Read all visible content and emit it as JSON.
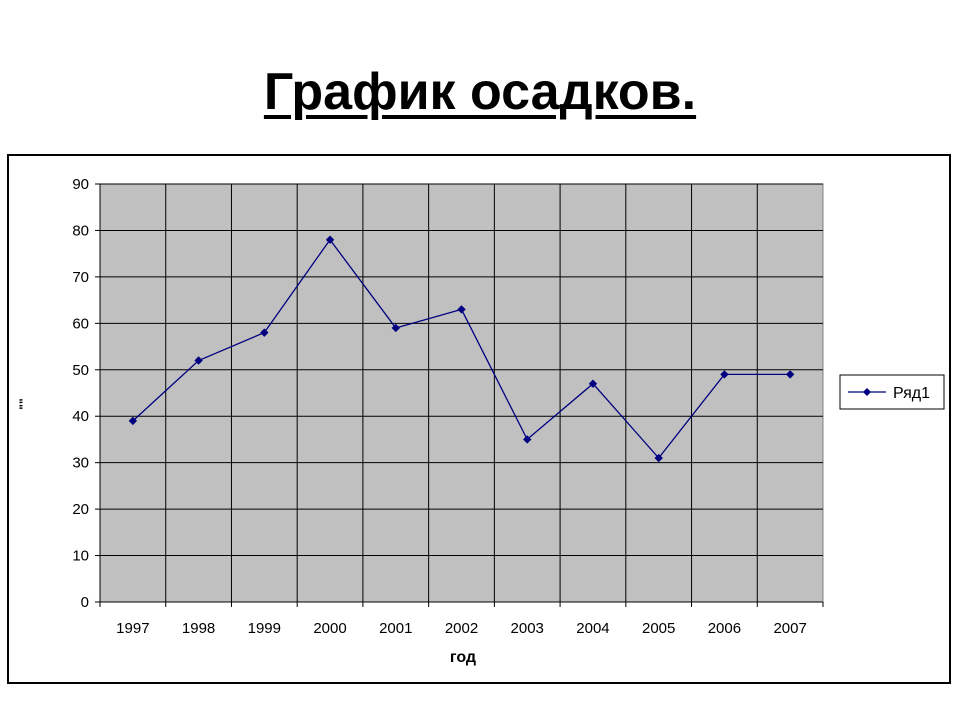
{
  "slide": {
    "title": "График осадков."
  },
  "chart_data": {
    "type": "line",
    "title": "",
    "xlabel": "год",
    "ylabel": "\"\"",
    "categories": [
      "1997",
      "1998",
      "1999",
      "2000",
      "2001",
      "2002",
      "2003",
      "2004",
      "2005",
      "2006",
      "2007"
    ],
    "series": [
      {
        "name": "Ряд1",
        "values": [
          39,
          52,
          58,
          78,
          59,
          63,
          35,
          47,
          31,
          49,
          49
        ],
        "color": "#000080",
        "marker": "diamond"
      }
    ],
    "ylim": [
      0,
      90
    ],
    "yticks": [
      0,
      10,
      20,
      30,
      40,
      50,
      60,
      70,
      80,
      90
    ],
    "grid": true,
    "plot_background": "#c0c0c0",
    "legend": "right"
  }
}
